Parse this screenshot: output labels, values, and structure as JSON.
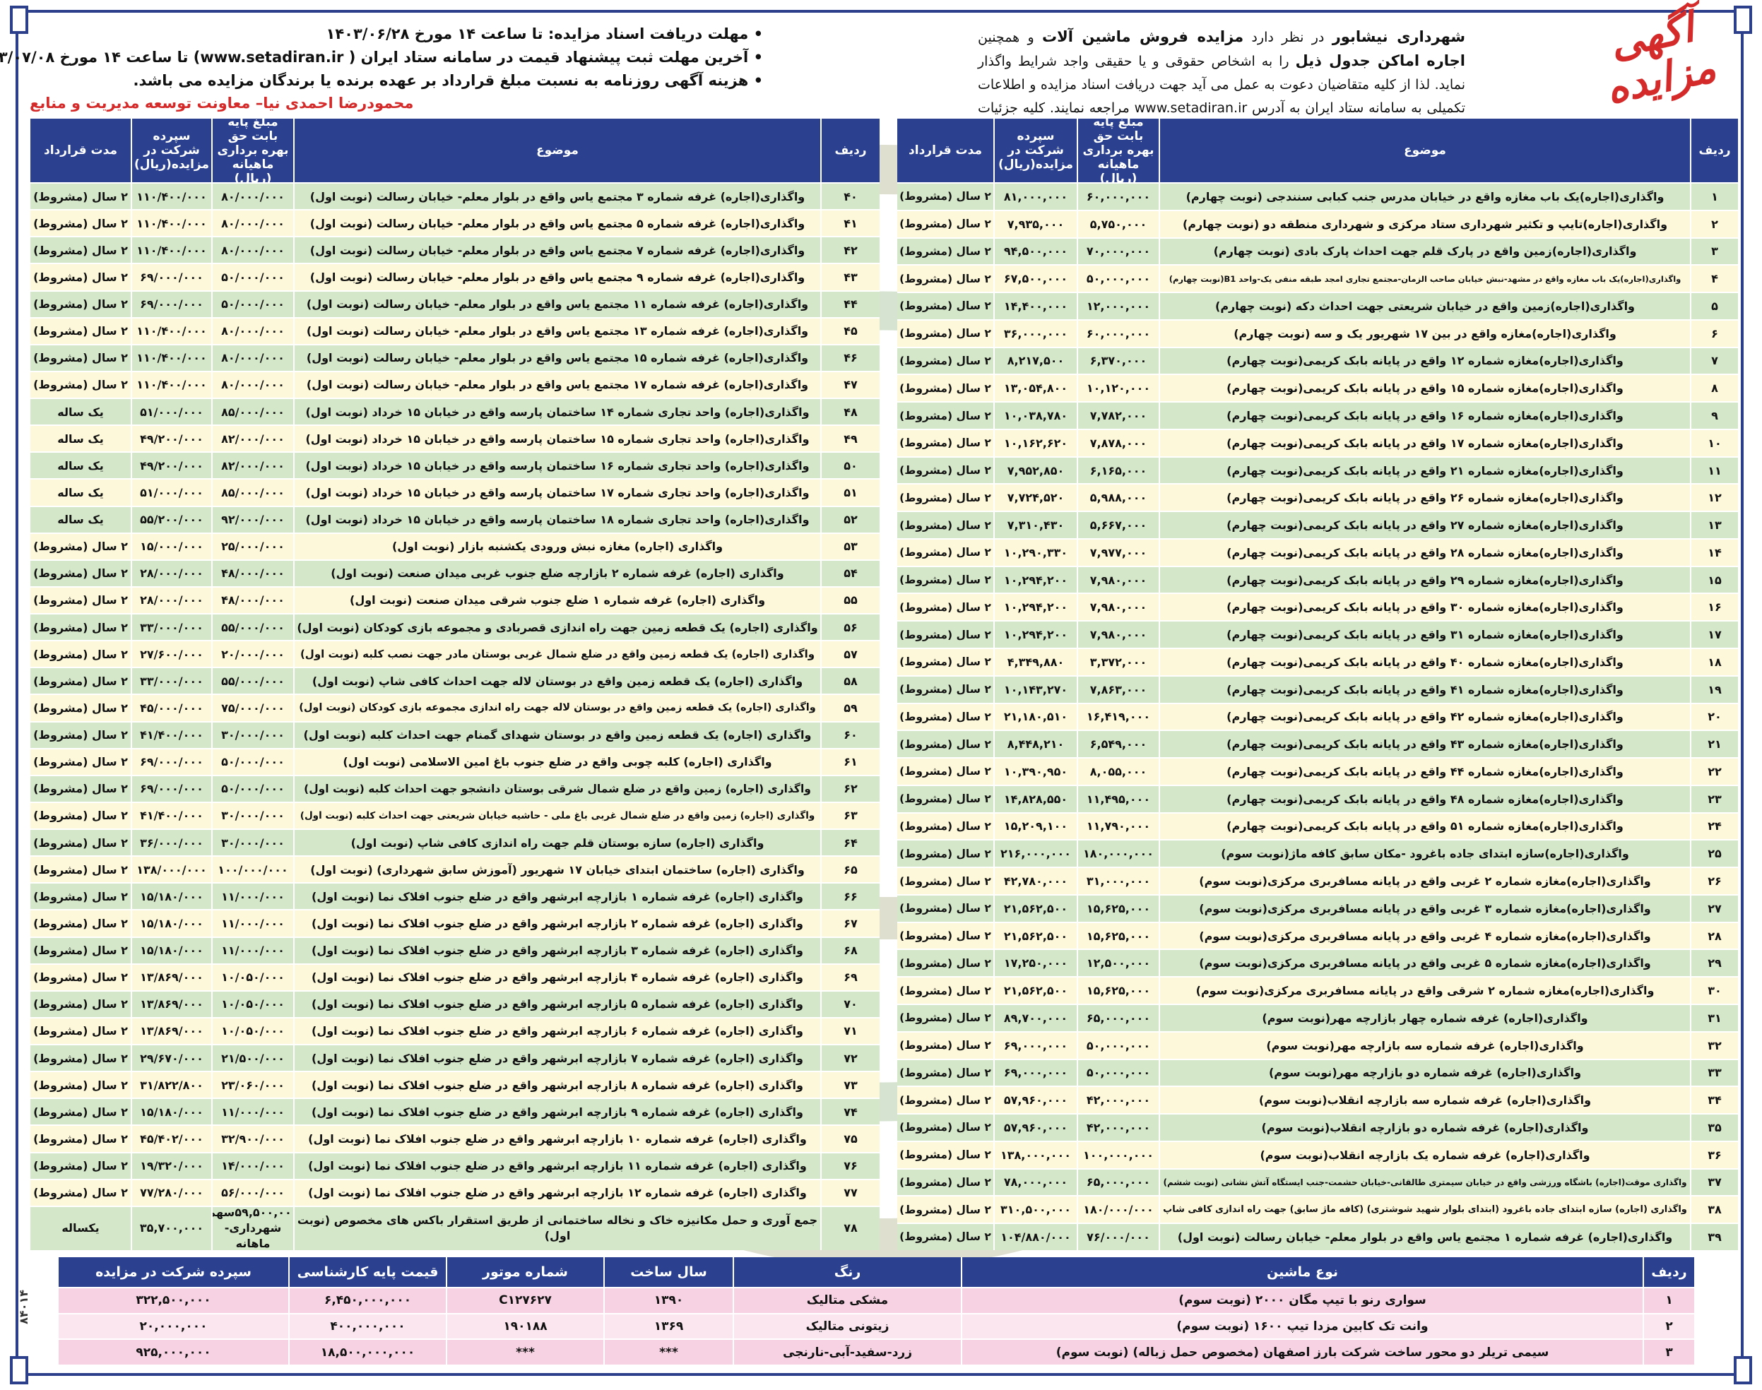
{
  "logo_text": "آگهی مزایده",
  "intro": [
    {
      "t": "شهرداری نیشابور",
      "b": true
    },
    {
      "t": " در نظر دارد ",
      "b": false
    },
    {
      "t": "مزایده فروش ماشین آلات",
      "b": true
    },
    {
      "t": " و همچنین ",
      "b": false
    },
    {
      "t": "اجاره اماکن جدول ذیل",
      "b": true
    },
    {
      "t": " را به اشخاص حقوقی و یا حقیقی واجد شرایط واگذار نماید. لذا از کلیه متقاضیان دعوت به عمل می آید جهت دریافت اسناد مزایده و اطلاعات تکمیلی به سامانه ستاد ایران به آدرس www.setadiran.ir مراجعه نمایند. کلیه جزئیات در اسناد مزایده درج شده است.",
      "b": false
    }
  ],
  "notes": [
    "• مهلت دریافت اسناد مزایده: تا ساعت ۱۴ مورخ ۱۴۰۳/۰۶/۲۸",
    "• آخرین مهلت ثبت پیشنهاد قیمت در سامانه ستاد ایران ( www.setadiran.ir) تا ساعت ۱۴ مورخ ۱۴۰۳/۰۷/۰۸",
    "• هزینه آگهی روزنامه به نسبت مبلغ قرارداد بر عهده برنده یا برندگان مزایده می باشد."
  ],
  "signature": "محمودرضا احمدی نیا– معاونت توسعه مدیریت و منابع",
  "ad_code": "۸۴۰۱۴",
  "colors": {
    "header_blue": "#2b4190",
    "row_green": "#d4e7c9",
    "row_cream": "#fdf8d9",
    "row_pink": "#f7d2e2",
    "accent_red": "#d42a2a"
  },
  "lease_headers": {
    "no": "ردیف",
    "subject": "موضوع",
    "base": "مبلغ پایه بابت حق بهره برداری ماهیانه (ریال)",
    "deposit": "سپرده شرکت در مزایده(ریال)",
    "duration": "مدت قرارداد"
  },
  "lease_right": [
    [
      "۱",
      "واگذاری(اجاره)یک باب مغازه واقع در خیابان مدرس جنب کبابی سنندجی (نوبت چهارم)",
      "۶۰,۰۰۰,۰۰۰",
      "۸۱,۰۰۰,۰۰۰",
      "۲ سال (مشروط)"
    ],
    [
      "۲",
      "واگذاری(اجاره)تایپ و تکثیر شهرداری ستاد مرکزی و شهرداری منطقه دو (نوبت چهارم)",
      "۵,۷۵۰,۰۰۰",
      "۷,۹۳۵,۰۰۰",
      "۲ سال (مشروط)"
    ],
    [
      "۳",
      "واگذاری(اجاره)زمین واقع در پارک قلم جهت احداث پارک بادی (نوبت چهارم)",
      "۷۰,۰۰۰,۰۰۰",
      "۹۴,۵۰۰,۰۰۰",
      "۲ سال (مشروط)"
    ],
    [
      "۴",
      "واگذاری(اجاره)یک باب مغازه واقع در مشهد-نبش خیابان صاحب الزمان-مجتمع تجاری امجد طبقه منفی یک-واحد B1(نوبت چهارم)",
      "۵۰,۰۰۰,۰۰۰",
      "۶۷,۵۰۰,۰۰۰",
      "۲ سال (مشروط)"
    ],
    [
      "۵",
      "واگذاری(اجاره)زمین واقع در خیابان شریعتی جهت احداث دکه (نوبت چهارم)",
      "۱۲,۰۰۰,۰۰۰",
      "۱۴,۴۰۰,۰۰۰",
      "۲ سال (مشروط)"
    ],
    [
      "۶",
      "واگذاری(اجاره)مغازه واقع در بین ۱۷ شهریور یک و سه (نوبت چهارم)",
      "۶۰,۰۰۰,۰۰۰",
      "۳۶,۰۰۰,۰۰۰",
      "۲ سال (مشروط)"
    ],
    [
      "۷",
      "واگذاری(اجاره)مغازه شماره ۱۲ واقع در پایانه بابک کریمی(نوبت چهارم)",
      "۶,۳۷۰,۰۰۰",
      "۸,۲۱۷,۵۰۰",
      "۲ سال (مشروط)"
    ],
    [
      "۸",
      "واگذاری(اجاره)مغازه شماره ۱۵ واقع در پایانه بابک کریمی(نوبت چهارم)",
      "۱۰,۱۲۰,۰۰۰",
      "۱۳,۰۵۴,۸۰۰",
      "۲ سال (مشروط)"
    ],
    [
      "۹",
      "واگذاری(اجاره)مغازه شماره ۱۶ واقع در پایانه بابک کریمی(نوبت چهارم)",
      "۷,۷۸۲,۰۰۰",
      "۱۰,۰۳۸,۷۸۰",
      "۲ سال (مشروط)"
    ],
    [
      "۱۰",
      "واگذاری(اجاره)مغازه شماره ۱۷ واقع در پایانه بابک کریمی(نوبت چهارم)",
      "۷,۸۷۸,۰۰۰",
      "۱۰,۱۶۲,۶۲۰",
      "۲ سال (مشروط)"
    ],
    [
      "۱۱",
      "واگذاری(اجاره)مغازه شماره ۲۱ واقع در پایانه بابک کریمی(نوبت چهارم)",
      "۶,۱۶۵,۰۰۰",
      "۷,۹۵۲,۸۵۰",
      "۲ سال (مشروط)"
    ],
    [
      "۱۲",
      "واگذاری(اجاره)مغازه شماره ۲۶ واقع در پایانه بابک کریمی(نوبت چهارم)",
      "۵,۹۸۸,۰۰۰",
      "۷,۷۲۴,۵۲۰",
      "۲ سال (مشروط)"
    ],
    [
      "۱۳",
      "واگذاری(اجاره)مغازه شماره ۲۷ واقع در پایانه بابک کریمی(نوبت چهارم)",
      "۵,۶۶۷,۰۰۰",
      "۷,۳۱۰,۴۳۰",
      "۲ سال (مشروط)"
    ],
    [
      "۱۴",
      "واگذاری(اجاره)مغازه شماره ۲۸ واقع در پایانه بابک کریمی(نوبت چهارم)",
      "۷,۹۷۷,۰۰۰",
      "۱۰,۲۹۰,۳۳۰",
      "۲ سال (مشروط)"
    ],
    [
      "۱۵",
      "واگذاری(اجاره)مغازه شماره ۲۹ واقع در پایانه بابک کریمی(نوبت چهارم)",
      "۷,۹۸۰,۰۰۰",
      "۱۰,۲۹۴,۲۰۰",
      "۲ سال (مشروط)"
    ],
    [
      "۱۶",
      "واگذاری(اجاره)مغازه شماره ۳۰ واقع در پایانه بابک کریمی(نوبت چهارم)",
      "۷,۹۸۰,۰۰۰",
      "۱۰,۲۹۴,۲۰۰",
      "۲ سال (مشروط)"
    ],
    [
      "۱۷",
      "واگذاری(اجاره)مغازه شماره ۳۱ واقع در پایانه بابک کریمی(نوبت چهارم)",
      "۷,۹۸۰,۰۰۰",
      "۱۰,۲۹۴,۲۰۰",
      "۲ سال (مشروط)"
    ],
    [
      "۱۸",
      "واگذاری(اجاره)مغازه شماره ۴۰ واقع در پایانه بابک کریمی(نوبت چهارم)",
      "۳,۳۷۲,۰۰۰",
      "۴,۳۴۹,۸۸۰",
      "۲ سال (مشروط)"
    ],
    [
      "۱۹",
      "واگذاری(اجاره)مغازه شماره ۴۱ واقع در پایانه بابک کریمی(نوبت چهارم)",
      "۷,۸۶۳,۰۰۰",
      "۱۰,۱۴۳,۲۷۰",
      "۲ سال (مشروط)"
    ],
    [
      "۲۰",
      "واگذاری(اجاره)مغازه شماره ۴۲ واقع در پایانه بابک کریمی(نوبت چهارم)",
      "۱۶,۴۱۹,۰۰۰",
      "۲۱,۱۸۰,۵۱۰",
      "۲ سال (مشروط)"
    ],
    [
      "۲۱",
      "واگذاری(اجاره)مغازه شماره ۴۳ واقع در پایانه بابک کریمی(نوبت چهارم)",
      "۶,۵۴۹,۰۰۰",
      "۸,۴۴۸,۲۱۰",
      "۲ سال (مشروط)"
    ],
    [
      "۲۲",
      "واگذاری(اجاره)مغازه شماره ۴۴ واقع در پایانه بابک کریمی(نوبت چهارم)",
      "۸,۰۵۵,۰۰۰",
      "۱۰,۳۹۰,۹۵۰",
      "۲ سال (مشروط)"
    ],
    [
      "۲۳",
      "واگذاری(اجاره)مغازه شماره ۴۸ واقع در پایانه بابک کریمی(نوبت چهارم)",
      "۱۱,۴۹۵,۰۰۰",
      "۱۴,۸۲۸,۵۵۰",
      "۲ سال (مشروط)"
    ],
    [
      "۲۴",
      "واگذاری(اجاره)مغازه شماره ۵۱ واقع در پایانه بابک کریمی(نوبت چهارم)",
      "۱۱,۷۹۰,۰۰۰",
      "۱۵,۲۰۹,۱۰۰",
      "۲ سال (مشروط)"
    ],
    [
      "۲۵",
      "واگذاری(اجاره)سازه ابتدای جاده باغرود -مکان سابق کافه ماژ(نوبت سوم)",
      "۱۸۰,۰۰۰,۰۰۰",
      "۲۱۶,۰۰۰,۰۰۰",
      "۲ سال (مشروط)"
    ],
    [
      "۲۶",
      "واگذاری(اجاره)مغازه شماره ۲ غربی واقع در پایانه مسافربری مرکزی(نوبت سوم)",
      "۳۱,۰۰۰,۰۰۰",
      "۴۲,۷۸۰,۰۰۰",
      "۲ سال (مشروط)"
    ],
    [
      "۲۷",
      "واگذاری(اجاره)مغازه شماره ۳ غربی واقع در پایانه مسافربری مرکزی(نوبت سوم)",
      "۱۵,۶۲۵,۰۰۰",
      "۲۱,۵۶۲,۵۰۰",
      "۲ سال (مشروط)"
    ],
    [
      "۲۸",
      "واگذاری(اجاره)مغازه شماره ۴ غربی واقع در پایانه مسافربری مرکزی(نوبت سوم)",
      "۱۵,۶۲۵,۰۰۰",
      "۲۱,۵۶۲,۵۰۰",
      "۲ سال (مشروط)"
    ],
    [
      "۲۹",
      "واگذاری(اجاره)مغازه شماره ۵ غربی واقع در پایانه مسافربری مرکزی(نوبت سوم)",
      "۱۲,۵۰۰,۰۰۰",
      "۱۷,۲۵۰,۰۰۰",
      "۲ سال (مشروط)"
    ],
    [
      "۳۰",
      "واگذاری(اجاره)مغازه شماره ۲ شرقی واقع در پایانه مسافربری مرکزی(نوبت سوم)",
      "۱۵,۶۲۵,۰۰۰",
      "۲۱,۵۶۲,۵۰۰",
      "۲ سال (مشروط)"
    ],
    [
      "۳۱",
      "واگذاری(اجاره) غرفه شماره چهار بازارچه مهر(نوبت سوم)",
      "۶۵,۰۰۰,۰۰۰",
      "۸۹,۷۰۰,۰۰۰",
      "۲ سال (مشروط)"
    ],
    [
      "۳۲",
      "واگذاری(اجاره) غرفه شماره سه بازارچه مهر(نوبت سوم)",
      "۵۰,۰۰۰,۰۰۰",
      "۶۹,۰۰۰,۰۰۰",
      "۲ سال (مشروط)"
    ],
    [
      "۳۳",
      "واگذاری(اجاره) غرفه شماره دو بازارچه مهر(نوبت سوم)",
      "۵۰,۰۰۰,۰۰۰",
      "۶۹,۰۰۰,۰۰۰",
      "۲ سال (مشروط)"
    ],
    [
      "۳۴",
      "واگذاری(اجاره) غرفه شماره سه بازارچه انقلاب(نوبت سوم)",
      "۴۲,۰۰۰,۰۰۰",
      "۵۷,۹۶۰,۰۰۰",
      "۲ سال (مشروط)"
    ],
    [
      "۳۵",
      "واگذاری(اجاره) غرفه شماره دو بازارچه انقلاب(نوبت سوم)",
      "۴۲,۰۰۰,۰۰۰",
      "۵۷,۹۶۰,۰۰۰",
      "۲ سال (مشروط)"
    ],
    [
      "۳۶",
      "واگذاری(اجاره) غرفه شماره یک بازارچه انقلاب(نوبت سوم)",
      "۱۰۰,۰۰۰,۰۰۰",
      "۱۳۸,۰۰۰,۰۰۰",
      "۲ سال (مشروط)"
    ],
    [
      "۳۷",
      "واگذاری موقت(اجاره) باشگاه ورزشی واقع در خیابان سیمتری طالقانی-خیابان حشمت-جنب ایستگاه آتش نشانی (نوبت ششم)",
      "۶۵,۰۰۰,۰۰۰",
      "۷۸,۰۰۰,۰۰۰",
      "۲ سال (مشروط)"
    ],
    [
      "۳۸",
      "واگذاری (اجاره) سازه ابتدای جاده باغرود (ابتدای بلوار شهید شوشتری) (کافه ماژ سابق) جهت راه اندازی کافی شاپ",
      "۱۸۰/۰۰۰/۰۰۰",
      "۳۱۰,۵۰۰,۰۰۰",
      "۲ سال (مشروط)"
    ],
    [
      "۳۹",
      "واگذاری(اجاره) غرفه شماره ۱ مجتمع یاس واقع در بلوار معلم- خیابان رسالت (نوبت اول)",
      "۷۶/۰۰۰/۰۰۰",
      "۱۰۴/۸۸۰/۰۰۰",
      "۲ سال (مشروط)"
    ]
  ],
  "lease_left": [
    [
      "۴۰",
      "واگذاری(اجاره) غرفه شماره ۳ مجتمع یاس واقع در بلوار معلم- خیابان رسالت (نوبت اول)",
      "۸۰/۰۰۰/۰۰۰",
      "۱۱۰/۴۰۰/۰۰۰",
      "۲ سال (مشروط)"
    ],
    [
      "۴۱",
      "واگذاری(اجاره) غرفه شماره ۵ مجتمع یاس واقع در بلوار معلم- خیابان رسالت (نوبت اول)",
      "۸۰/۰۰۰/۰۰۰",
      "۱۱۰/۴۰۰/۰۰۰",
      "۲ سال (مشروط)"
    ],
    [
      "۴۲",
      "واگذاری(اجاره) غرفه شماره ۷ مجتمع یاس واقع در بلوار معلم- خیابان رسالت (نوبت اول)",
      "۸۰/۰۰۰/۰۰۰",
      "۱۱۰/۴۰۰/۰۰۰",
      "۲ سال (مشروط)"
    ],
    [
      "۴۳",
      "واگذاری(اجاره) غرفه شماره ۹ مجتمع یاس واقع در بلوار معلم- خیابان رسالت (نوبت اول)",
      "۵۰/۰۰۰/۰۰۰",
      "۶۹/۰۰۰/۰۰۰",
      "۲ سال (مشروط)"
    ],
    [
      "۴۴",
      "واگذاری(اجاره) غرفه شماره ۱۱ مجتمع یاس واقع در بلوار معلم- خیابان رسالت (نوبت اول)",
      "۵۰/۰۰۰/۰۰۰",
      "۶۹/۰۰۰/۰۰۰",
      "۲ سال (مشروط)"
    ],
    [
      "۴۵",
      "واگذاری(اجاره) غرفه شماره ۱۳ مجتمع یاس واقع در بلوار معلم- خیابان رسالت (نوبت اول)",
      "۸۰/۰۰۰/۰۰۰",
      "۱۱۰/۴۰۰/۰۰۰",
      "۲ سال (مشروط)"
    ],
    [
      "۴۶",
      "واگذاری(اجاره) غرفه شماره ۱۵ مجتمع یاس واقع در بلوار معلم- خیابان رسالت (نوبت اول)",
      "۸۰/۰۰۰/۰۰۰",
      "۱۱۰/۴۰۰/۰۰۰",
      "۲ سال (مشروط)"
    ],
    [
      "۴۷",
      "واگذاری(اجاره) غرفه شماره ۱۷ مجتمع یاس واقع در بلوار معلم- خیابان رسالت (نوبت اول)",
      "۸۰/۰۰۰/۰۰۰",
      "۱۱۰/۴۰۰/۰۰۰",
      "۲ سال (مشروط)"
    ],
    [
      "۴۸",
      "واگذاری(اجاره) واحد تجاری شماره ۱۴ ساختمان پارسه واقع در خیابان ۱۵ خرداد (نوبت اول)",
      "۸۵/۰۰۰/۰۰۰",
      "۵۱/۰۰۰/۰۰۰",
      "یک ساله"
    ],
    [
      "۴۹",
      "واگذاری(اجاره) واحد تجاری شماره ۱۵ ساختمان پارسه واقع در خیابان ۱۵ خرداد (نوبت اول)",
      "۸۲/۰۰۰/۰۰۰",
      "۴۹/۲۰۰/۰۰۰",
      "یک ساله"
    ],
    [
      "۵۰",
      "واگذاری(اجاره) واحد تجاری شماره ۱۶ ساختمان پارسه واقع در خیابان ۱۵ خرداد (نوبت اول)",
      "۸۲/۰۰۰/۰۰۰",
      "۴۹/۲۰۰/۰۰۰",
      "یک ساله"
    ],
    [
      "۵۱",
      "واگذاری(اجاره) واحد تجاری شماره ۱۷ ساختمان پارسه واقع در خیابان ۱۵ خرداد (نوبت اول)",
      "۸۵/۰۰۰/۰۰۰",
      "۵۱/۰۰۰/۰۰۰",
      "یک ساله"
    ],
    [
      "۵۲",
      "واگذاری(اجاره) واحد تجاری شماره ۱۸ ساختمان پارسه واقع در خیابان ۱۵ خرداد (نوبت اول)",
      "۹۲/۰۰۰/۰۰۰",
      "۵۵/۲۰۰/۰۰۰",
      "یک ساله"
    ],
    [
      "۵۳",
      "واگذاری (اجاره) مغازه نبش ورودی یکشنبه بازار (نوبت اول)",
      "۲۵/۰۰۰/۰۰۰",
      "۱۵/۰۰۰/۰۰۰",
      "۲ سال (مشروط)"
    ],
    [
      "۵۴",
      "واگذاری (اجاره) غرفه شماره ۲ بازارچه ضلع جنوب غربی میدان صنعت (نوبت اول)",
      "۴۸/۰۰۰/۰۰۰",
      "۲۸/۰۰۰/۰۰۰",
      "۲ سال (مشروط)"
    ],
    [
      "۵۵",
      "واگذاری (اجاره) غرفه شماره ۱ ضلع جنوب شرقی میدان صنعت (نوبت اول)",
      "۴۸/۰۰۰/۰۰۰",
      "۲۸/۰۰۰/۰۰۰",
      "۲ سال (مشروط)"
    ],
    [
      "۵۶",
      "واگذاری (اجاره) یک قطعه زمین جهت راه اندازی قصربادی و مجموعه بازی کودکان (نوبت اول)",
      "۵۵/۰۰۰/۰۰۰",
      "۳۳/۰۰۰/۰۰۰",
      "۲ سال (مشروط)"
    ],
    [
      "۵۷",
      "واگذاری (اجاره) یک قطعه زمین واقع در ضلع شمال غربی بوستان مادر جهت نصب کلبه (نوبت اول)",
      "۲۰/۰۰۰/۰۰۰",
      "۲۷/۶۰۰/۰۰۰",
      "۲ سال (مشروط)"
    ],
    [
      "۵۸",
      "واگذاری (اجاره) یک قطعه زمین واقع در بوستان لاله جهت احداث کافی شاپ (نوبت اول)",
      "۵۵/۰۰۰/۰۰۰",
      "۳۳/۰۰۰/۰۰۰",
      "۲ سال (مشروط)"
    ],
    [
      "۵۹",
      "واگذاری (اجاره) یک قطعه زمین واقع در بوستان لاله جهت راه اندازی مجموعه بازی کودکان (نوبت اول)",
      "۷۵/۰۰۰/۰۰۰",
      "۴۵/۰۰۰/۰۰۰",
      "۲ سال (مشروط)"
    ],
    [
      "۶۰",
      "واگذاری (اجاره) یک قطعه زمین واقع در بوستان شهدای گمنام جهت احداث کلبه (نوبت اول)",
      "۳۰/۰۰۰/۰۰۰",
      "۴۱/۴۰۰/۰۰۰",
      "۲ سال (مشروط)"
    ],
    [
      "۶۱",
      "واگذاری (اجاره) کلبه چوبی واقع در ضلع جنوب باغ امین الاسلامی (نوبت اول)",
      "۵۰/۰۰۰/۰۰۰",
      "۶۹/۰۰۰/۰۰۰",
      "۲ سال (مشروط)"
    ],
    [
      "۶۲",
      "واگذاری (اجاره) زمین واقع در ضلع شمال شرقی بوستان دانشجو جهت احداث کلبه (نوبت اول)",
      "۵۰/۰۰۰/۰۰۰",
      "۶۹/۰۰۰/۰۰۰",
      "۲ سال (مشروط)"
    ],
    [
      "۶۳",
      "واگذاری (اجاره) زمین واقع در ضلع شمال غربی باغ ملی - حاشیه خیابان شریعتی جهت احداث کلبه (نوبت اول)",
      "۳۰/۰۰۰/۰۰۰",
      "۴۱/۴۰۰/۰۰۰",
      "۲ سال (مشروط)"
    ],
    [
      "۶۴",
      "واگذاری (اجاره) سازه بوستان قلم جهت راه اندازی کافی شاپ (نوبت اول)",
      "۳۰/۰۰۰/۰۰۰",
      "۳۶/۰۰۰/۰۰۰",
      "۲ سال (مشروط)"
    ],
    [
      "۶۵",
      "واگذاری (اجاره) ساختمان ابتدای خیابان ۱۷ شهریور (آموزش سابق شهرداری) (نوبت اول)",
      "۱۰۰/۰۰۰/۰۰۰",
      "۱۳۸/۰۰۰/۰۰۰",
      "۲ سال (مشروط)"
    ],
    [
      "۶۶",
      "واگذاری (اجاره) غرفه شماره ۱ بازارچه ابرشهر واقع در ضلع جنوب افلاک نما (نوبت اول)",
      "۱۱/۰۰۰/۰۰۰",
      "۱۵/۱۸۰/۰۰۰",
      "۲ سال (مشروط)"
    ],
    [
      "۶۷",
      "واگذاری (اجاره) غرفه شماره ۲ بازارچه ابرشهر واقع در ضلع جنوب افلاک نما (نوبت اول)",
      "۱۱/۰۰۰/۰۰۰",
      "۱۵/۱۸۰/۰۰۰",
      "۲ سال (مشروط)"
    ],
    [
      "۶۸",
      "واگذاری (اجاره) غرفه شماره ۳ بازارچه ابرشهر واقع در ضلع جنوب افلاک نما (نوبت اول)",
      "۱۱/۰۰۰/۰۰۰",
      "۱۵/۱۸۰/۰۰۰",
      "۲ سال (مشروط)"
    ],
    [
      "۶۹",
      "واگذاری (اجاره) غرفه شماره ۴ بازارچه ابرشهر واقع در ضلع جنوب افلاک نما (نوبت اول)",
      "۱۰/۰۵۰/۰۰۰",
      "۱۳/۸۶۹/۰۰۰",
      "۲ سال (مشروط)"
    ],
    [
      "۷۰",
      "واگذاری (اجاره) غرفه شماره ۵ بازارچه ابرشهر واقع در ضلع جنوب افلاک نما (نوبت اول)",
      "۱۰/۰۵۰/۰۰۰",
      "۱۳/۸۶۹/۰۰۰",
      "۲ سال (مشروط)"
    ],
    [
      "۷۱",
      "واگذاری (اجاره) غرفه شماره ۶ بازارچه ابرشهر واقع در ضلع جنوب افلاک نما (نوبت اول)",
      "۱۰/۰۵۰/۰۰۰",
      "۱۳/۸۶۹/۰۰۰",
      "۲ سال (مشروط)"
    ],
    [
      "۷۲",
      "واگذاری (اجاره) غرفه شماره ۷ بازارچه ابرشهر واقع در ضلع جنوب افلاک نما (نوبت اول)",
      "۲۱/۵۰۰/۰۰۰",
      "۲۹/۶۷۰/۰۰۰",
      "۲ سال (مشروط)"
    ],
    [
      "۷۳",
      "واگذاری (اجاره) غرفه شماره ۸ بازارچه ابرشهر واقع در ضلع جنوب افلاک نما (نوبت اول)",
      "۲۳/۰۶۰/۰۰۰",
      "۳۱/۸۲۲/۸۰۰",
      "۲ سال (مشروط)"
    ],
    [
      "۷۴",
      "واگذاری (اجاره) غرفه شماره ۹ بازارچه ابرشهر واقع در ضلع جنوب افلاک نما (نوبت اول)",
      "۱۱/۰۰۰/۰۰۰",
      "۱۵/۱۸۰/۰۰۰",
      "۲ سال (مشروط)"
    ],
    [
      "۷۵",
      "واگذاری (اجاره) غرفه شماره ۱۰ بازارچه ابرشهر واقع در ضلع جنوب افلاک نما (نوبت اول)",
      "۳۲/۹۰۰/۰۰۰",
      "۴۵/۴۰۲/۰۰۰",
      "۲ سال (مشروط)"
    ],
    [
      "۷۶",
      "واگذاری (اجاره) غرفه شماره ۱۱ بازارچه ابرشهر واقع در ضلع جنوب افلاک نما (نوبت اول)",
      "۱۴/۰۰۰/۰۰۰",
      "۱۹/۳۲۰/۰۰۰",
      "۲ سال (مشروط)"
    ],
    [
      "۷۷",
      "واگذاری (اجاره) غرفه شماره ۱۲ بازارچه ابرشهر واقع در ضلع جنوب افلاک نما (نوبت اول)",
      "۵۶/۰۰۰/۰۰۰",
      "۷۷/۲۸۰/۰۰۰",
      "۲ سال (مشروط)"
    ],
    [
      "۷۸",
      "جمع آوری و حمل مکانیزه خاک و نخاله ساختمانی از طریق استقرار باکس های مخصوص (نوبت اول)",
      "۵۹,۵۰۰,۰۰۰سهم شهرداری-ماهانه",
      "۳۵,۷۰۰,۰۰۰",
      "یکساله"
    ]
  ],
  "vehicle_headers": {
    "no": "ردیف",
    "type": "نوع ماشین",
    "color": "رنگ",
    "year": "سال ساخت",
    "engine": "شماره موتور",
    "base_price": "قیمت پایه کارشناسی",
    "deposit": "سپرده شرکت در مزایده"
  },
  "vehicles": [
    [
      "۱",
      "سواری رنو با تیپ مگان ۲۰۰۰ (نوبت سوم)",
      "مشکی متالیک",
      "۱۳۹۰",
      "C۱۲۷۶۲۷",
      "۶,۴۵۰,۰۰۰,۰۰۰",
      "۳۲۲,۵۰۰,۰۰۰"
    ],
    [
      "۲",
      "وانت تک کابین مزدا تیپ ۱۶۰۰ (نوبت سوم)",
      "زیتونی متالیک",
      "۱۳۶۹",
      "۱۹۰۱۸۸",
      "۴۰۰,۰۰۰,۰۰۰",
      "۲۰,۰۰۰,۰۰۰"
    ],
    [
      "۳",
      "سیمی تریلر دو محور ساخت شرکت بارز اصفهان (مخصوص حمل زباله) (نوبت سوم)",
      "زرد-سفید-آبی-نارنجی",
      "***",
      "***",
      "۱۸,۵۰۰,۰۰۰,۰۰۰",
      "۹۲۵,۰۰۰,۰۰۰"
    ]
  ]
}
